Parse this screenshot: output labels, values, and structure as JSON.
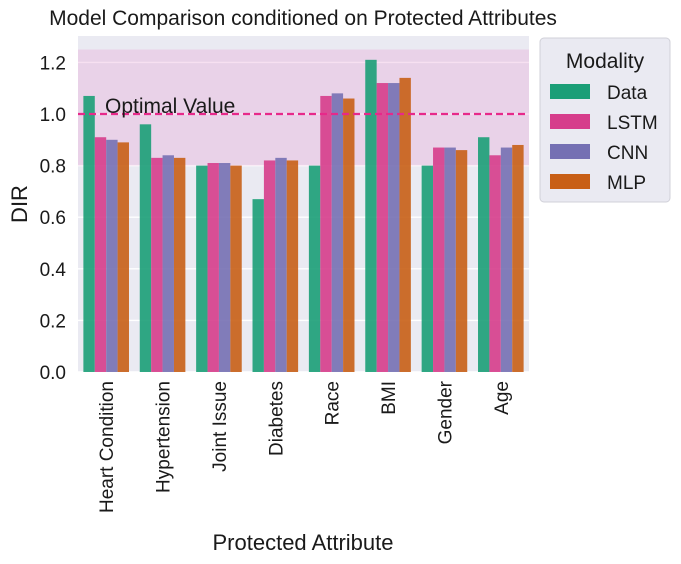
{
  "chart_data": {
    "type": "bar",
    "title": "Model Comparison conditioned on Protected Attributes",
    "xlabel": "Protected Attribute",
    "ylabel": "DIR",
    "ylim": [
      0,
      1.3
    ],
    "yticks": [
      "0.0",
      "0.2",
      "0.4",
      "0.6",
      "0.8",
      "1.0",
      "1.2"
    ],
    "grid": true,
    "categories": [
      "Heart Condition",
      "Hypertension",
      "Joint Issue",
      "Diabetes",
      "Race",
      "BMI",
      "Gender",
      "Age"
    ],
    "series": [
      {
        "name": "Data",
        "color": "#1b9e77",
        "values": [
          1.07,
          0.96,
          0.8,
          0.67,
          0.8,
          1.21,
          0.8,
          0.91
        ]
      },
      {
        "name": "LSTM",
        "color": "#d63d8b",
        "values": [
          0.91,
          0.83,
          0.81,
          0.82,
          1.07,
          1.12,
          0.87,
          0.84
        ]
      },
      {
        "name": "CNN",
        "color": "#7570b3",
        "values": [
          0.9,
          0.84,
          0.81,
          0.83,
          1.08,
          1.12,
          0.87,
          0.87
        ]
      },
      {
        "name": "MLP",
        "color": "#c85f16",
        "values": [
          0.89,
          0.83,
          0.8,
          0.82,
          1.06,
          1.14,
          0.86,
          0.88
        ]
      }
    ],
    "fair_band": {
      "min": 0.8,
      "max": 1.25,
      "color": "#e8a6d6"
    },
    "reference_line": {
      "value": 1.0,
      "label": "Optimal Value",
      "color": "#e7298a"
    },
    "legend": {
      "title": "Modality",
      "placement": "outside-right-top"
    }
  }
}
